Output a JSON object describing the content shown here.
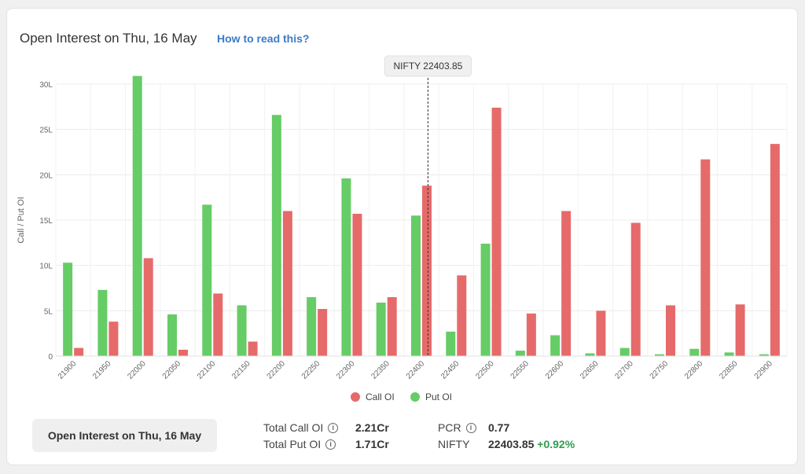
{
  "header": {
    "title": "Open Interest on Thu, 16 May",
    "help_link": "How to read this?"
  },
  "chart_data": {
    "type": "bar",
    "ylabel": "Call / Put OI",
    "ylim": [
      0,
      3000000
    ],
    "yticks": [
      {
        "value": 0,
        "label": "0"
      },
      {
        "value": 500000,
        "label": "5L"
      },
      {
        "value": 1000000,
        "label": "10L"
      },
      {
        "value": 1500000,
        "label": "15L"
      },
      {
        "value": 2000000,
        "label": "20L"
      },
      {
        "value": 2500000,
        "label": "25L"
      },
      {
        "value": 3000000,
        "label": "30L"
      }
    ],
    "categories": [
      "21900",
      "21950",
      "22000",
      "22050",
      "22100",
      "22150",
      "22200",
      "22250",
      "22300",
      "22350",
      "22400",
      "22450",
      "22500",
      "22550",
      "22600",
      "22650",
      "22700",
      "22750",
      "22800",
      "22850",
      "22900"
    ],
    "series": [
      {
        "name": "Put OI",
        "color": "#66cc66",
        "values": [
          1030000,
          730000,
          3090000,
          460000,
          1670000,
          560000,
          2660000,
          650000,
          1960000,
          590000,
          1550000,
          270000,
          1240000,
          60000,
          230000,
          30000,
          90000,
          20000,
          80000,
          40000,
          20000
        ]
      },
      {
        "name": "Call OI",
        "color": "#e66a6a",
        "values": [
          90000,
          380000,
          1080000,
          70000,
          690000,
          160000,
          1600000,
          520000,
          1570000,
          650000,
          1880000,
          890000,
          2740000,
          470000,
          1600000,
          500000,
          1470000,
          560000,
          2170000,
          570000,
          2340000
        ]
      }
    ],
    "legend": {
      "position": "bottom",
      "items": [
        "Call OI",
        "Put OI"
      ]
    },
    "spot_marker": {
      "value": 22403.85,
      "label": "NIFTY 22403.85"
    },
    "grid": true
  },
  "summary": {
    "button_label": "Open Interest on Thu, 16 May",
    "total_call_label": "Total Call OI",
    "total_call_value": "2.21Cr",
    "total_put_label": "Total Put OI",
    "total_put_value": "1.71Cr",
    "pcr_label": "PCR",
    "pcr_value": "0.77",
    "nifty_label": "NIFTY",
    "nifty_value": "22403.85",
    "nifty_change": "+0.92%"
  }
}
